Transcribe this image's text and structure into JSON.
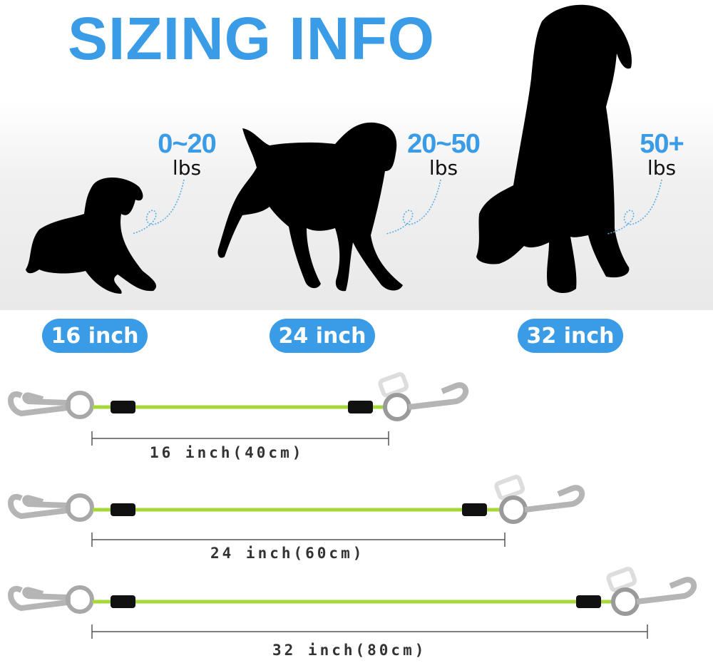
{
  "title": "SIZING INFO",
  "dogs": [
    {
      "weight": "0~20",
      "unit": "lbs",
      "size": "16 inch"
    },
    {
      "weight": "20~50",
      "unit": "lbs",
      "size": "24 inch"
    },
    {
      "weight": "50+",
      "unit": "lbs",
      "size": "32 inch"
    }
  ],
  "leashes": [
    {
      "label": "16 inch(40cm)"
    },
    {
      "label": "24 inch(60cm)"
    },
    {
      "label": "32 inch(80cm)"
    }
  ],
  "colors": {
    "accent": "#3a9be6",
    "cable": "#a6d83a",
    "silhouette": "#000000"
  }
}
